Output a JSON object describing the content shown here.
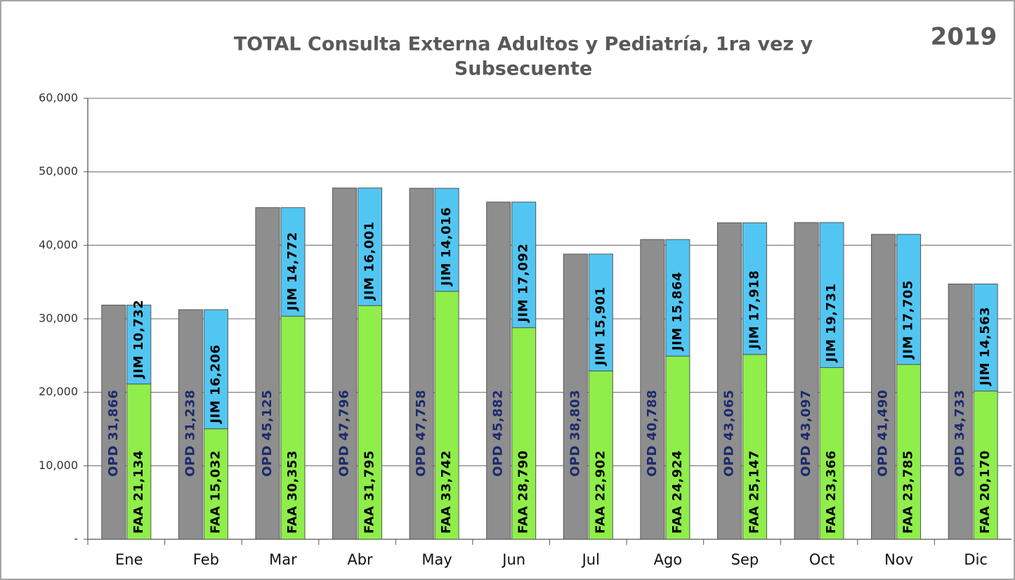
{
  "chart_data": {
    "type": "bar",
    "title": "TOTAL Consulta Externa Adultos y Pediatría, 1ra vez y",
    "title_line2": "Subsecuente",
    "annotation": "2019",
    "categories": [
      "Ene",
      "Feb",
      "Mar",
      "Abr",
      "May",
      "Jun",
      "Jul",
      "Ago",
      "Sep",
      "Oct",
      "Nov",
      "Dic"
    ],
    "series": [
      {
        "name": "OPD",
        "color": "#8e8e8e",
        "position": "left",
        "values": [
          31866,
          31238,
          45125,
          47796,
          47758,
          45882,
          38803,
          40788,
          43065,
          43097,
          41490,
          34733
        ],
        "value_labels": [
          "OPD 31,866",
          "OPD 31,238",
          "OPD 45,125",
          "OPD 47,796",
          "OPD 47,758",
          "OPD 45,882",
          "OPD 38,803",
          "OPD 40,788",
          "OPD 43,065",
          "OPD 43,097",
          "OPD 41,490",
          "OPD 34,733"
        ]
      },
      {
        "name": "FAA",
        "color": "#8fee4a",
        "position": "right",
        "values": [
          21134,
          15032,
          30353,
          31795,
          33742,
          28790,
          22902,
          24924,
          25147,
          23366,
          23785,
          20170
        ],
        "value_labels": [
          "FAA 21,134",
          "FAA 15,032",
          "FAA 30,353",
          "FAA 31,795",
          "FAA 33,742",
          "FAA 28,790",
          "FAA 22,902",
          "FAA 24,924",
          "FAA 25,147",
          "FAA 23,366",
          "FAA 23,785",
          "FAA 20,170"
        ]
      },
      {
        "name": "JIM",
        "color": "#52c6f2",
        "position": "right",
        "values": [
          10732,
          16206,
          14772,
          16001,
          14016,
          17092,
          15901,
          15864,
          17918,
          19731,
          17705,
          14563
        ],
        "value_labels": [
          "JIM 10,732",
          "JIM 16,206",
          "JIM 14,772",
          "JIM 16,001",
          "JIM 14,016",
          "JIM 17,092",
          "JIM 15,901",
          "JIM 15,864",
          "JIM 17,918",
          "JIM 19,731",
          "JIM 17,705",
          "JIM 14,563"
        ]
      }
    ],
    "ylim": [
      0,
      60000
    ],
    "yticks": [
      {
        "value": 0,
        "label": "-"
      },
      {
        "value": 10000,
        "label": "10,000"
      },
      {
        "value": 20000,
        "label": "20,000"
      },
      {
        "value": 30000,
        "label": "30,000"
      },
      {
        "value": 40000,
        "label": "40,000"
      },
      {
        "value": 50000,
        "label": "50,000"
      },
      {
        "value": 60000,
        "label": "60,000"
      }
    ],
    "grid": true
  }
}
